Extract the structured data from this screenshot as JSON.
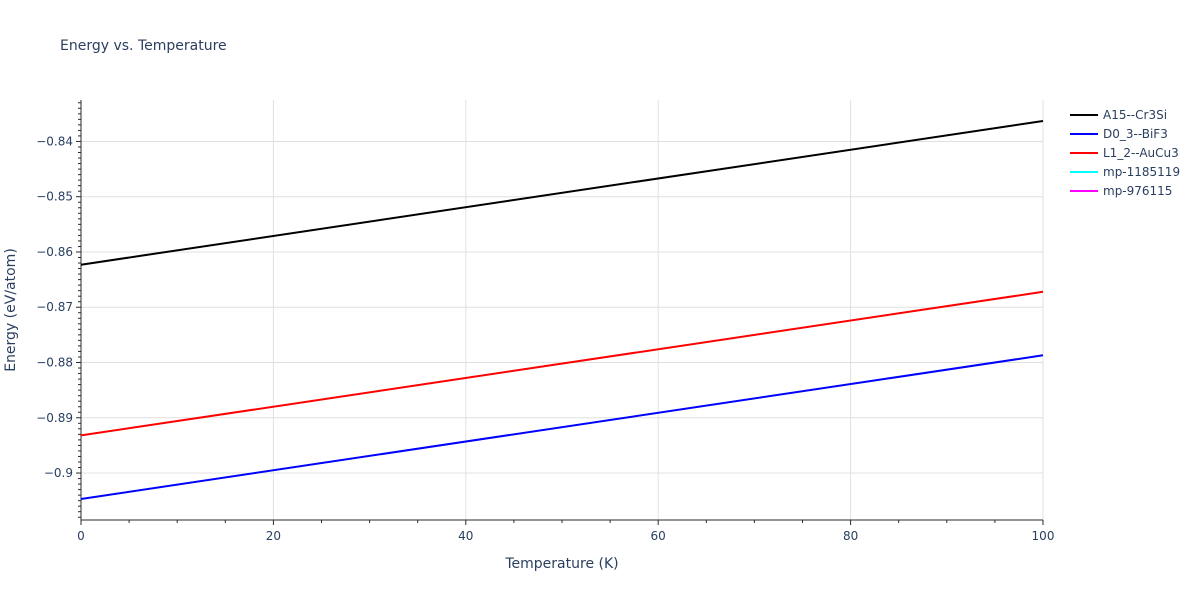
{
  "chart_data": {
    "type": "line",
    "title": "Energy vs. Temperature",
    "xlabel": "Temperature (K)",
    "ylabel": "Energy (eV/atom)",
    "xlim": [
      0,
      100
    ],
    "ylim": [
      -0.9085,
      -0.8325
    ],
    "x_ticks": [
      0,
      20,
      40,
      60,
      80,
      100
    ],
    "x_tick_labels": [
      "0",
      "20",
      "40",
      "60",
      "80",
      "100"
    ],
    "y_ticks": [
      -0.9,
      -0.89,
      -0.88,
      -0.87,
      -0.86,
      -0.85,
      -0.84
    ],
    "y_tick_labels": [
      "−0.9",
      "−0.89",
      "−0.88",
      "−0.87",
      "−0.86",
      "−0.85",
      "−0.84"
    ],
    "grid": true,
    "legend_position": "right",
    "series": [
      {
        "name": "A15--Cr3Si",
        "color": "#000000",
        "x": [
          0,
          100
        ],
        "y": [
          -0.8623,
          -0.8363
        ]
      },
      {
        "name": "D0_3--BiF3",
        "color": "#0000ff",
        "x": [
          0,
          100
        ],
        "y": [
          -0.9047,
          -0.8787
        ]
      },
      {
        "name": "L1_2--AuCu3",
        "color": "#ff0000",
        "x": [
          0,
          100
        ],
        "y": [
          -0.8932,
          -0.8672
        ]
      },
      {
        "name": "mp-1185119",
        "color": "#00ffff",
        "x": [],
        "y": []
      },
      {
        "name": "mp-976115",
        "color": "#ff00ff",
        "x": [],
        "y": []
      }
    ]
  }
}
